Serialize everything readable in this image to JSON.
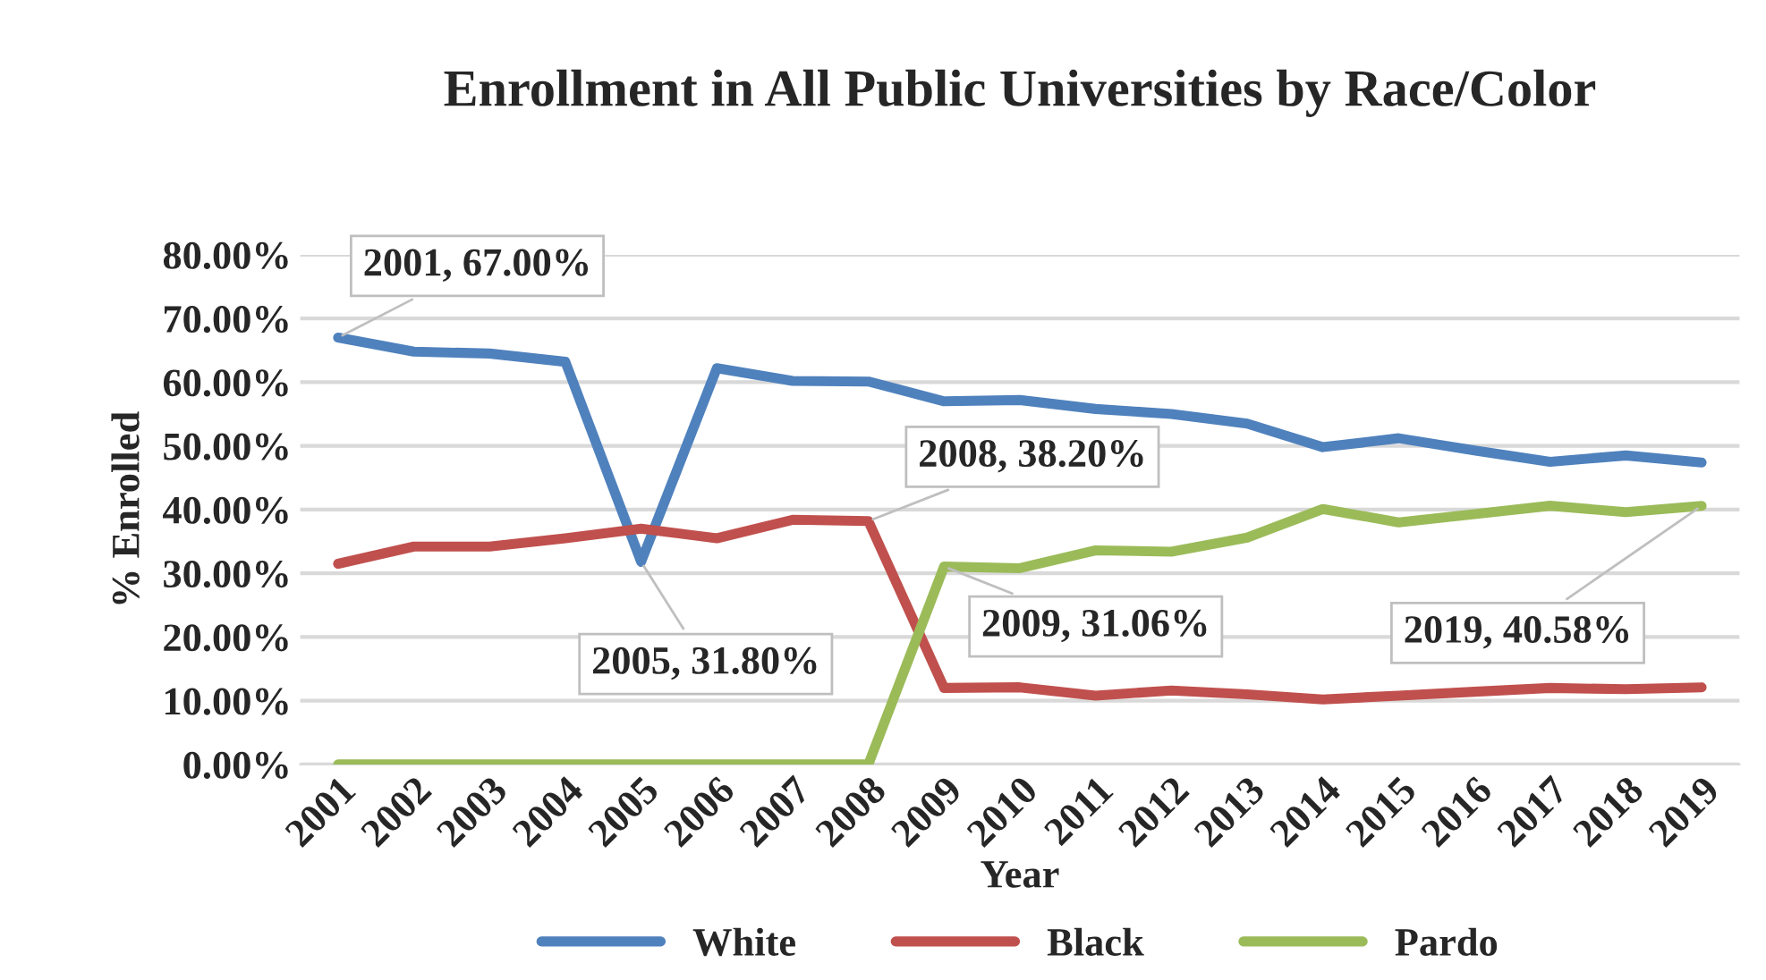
{
  "chart_data": {
    "type": "line",
    "title": "Enrollment in All Public Universities by Race/Color",
    "xlabel": "Year",
    "ylabel": "% Enrolled",
    "categories": [
      "2001",
      "2002",
      "2003",
      "2004",
      "2005",
      "2006",
      "2007",
      "2008",
      "2009",
      "2010",
      "2011",
      "2012",
      "2013",
      "2014",
      "2015",
      "2016",
      "2017",
      "2018",
      "2019"
    ],
    "series": [
      {
        "name": "White",
        "color": "#4f81bd",
        "values": [
          67.0,
          64.8,
          64.5,
          63.2,
          31.8,
          62.2,
          60.2,
          60.1,
          57.0,
          57.2,
          55.8,
          55.0,
          53.5,
          49.8,
          51.2,
          49.3,
          47.5,
          48.5,
          47.4
        ]
      },
      {
        "name": "Black",
        "color": "#c0504d",
        "values": [
          31.5,
          34.2,
          34.2,
          35.5,
          37.0,
          35.5,
          38.4,
          38.2,
          12.0,
          12.1,
          10.8,
          11.6,
          11.0,
          10.2,
          10.8,
          11.4,
          12.0,
          11.8,
          12.1
        ]
      },
      {
        "name": "Pardo",
        "color": "#9bbb59",
        "values": [
          0,
          0,
          0,
          0,
          0,
          0,
          0,
          0,
          31.06,
          30.8,
          33.6,
          33.4,
          35.6,
          40.1,
          38.0,
          39.3,
          40.6,
          39.6,
          40.58
        ]
      }
    ],
    "ylim": [
      0,
      80
    ],
    "yticks": [
      {
        "value": 0,
        "label": "0.00%"
      },
      {
        "value": 10,
        "label": "10.00%"
      },
      {
        "value": 20,
        "label": "20.00%"
      },
      {
        "value": 30,
        "label": "30.00%"
      },
      {
        "value": 40,
        "label": "40.00%"
      },
      {
        "value": 50,
        "label": "50.00%"
      },
      {
        "value": 60,
        "label": "60.00%"
      },
      {
        "value": 70,
        "label": "70.00%"
      },
      {
        "value": 80,
        "label": "80.00%"
      }
    ],
    "grid": "y",
    "legend": "bottom",
    "marker": "none",
    "line_style": "solid",
    "annotations": [
      {
        "text": "2001, 67.00%",
        "x": "2001",
        "y": 67.0
      },
      {
        "text": "2005, 31.80%",
        "x": "2005",
        "y": 31.8
      },
      {
        "text": "2008, 38.20%",
        "x": "2008",
        "y": 38.2
      },
      {
        "text": "2009, 31.06%",
        "x": "2009",
        "y": 31.06
      },
      {
        "text": "2019, 40.58%",
        "x": "2019",
        "y": 40.58
      }
    ]
  }
}
